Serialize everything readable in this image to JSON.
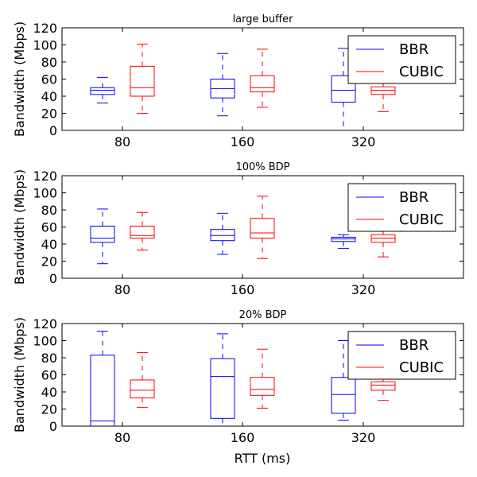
{
  "xlabel": "RTT (ms)",
  "colors": {
    "BBR": "#0000ff",
    "CUBIC": "#ff0000"
  },
  "chart_data": [
    {
      "type": "box",
      "title": "large buffer",
      "ylabel": "Bandwidth (Mbps)",
      "categories": [
        "80",
        "160",
        "320"
      ],
      "ylim": [
        0,
        120
      ],
      "yticks": [
        0,
        20,
        40,
        60,
        80,
        100,
        120
      ],
      "legend": "top-right",
      "series": [
        {
          "name": "BBR",
          "boxes": [
            {
              "min": 32,
              "q1": 42,
              "median": 47,
              "q3": 50,
              "max": 62
            },
            {
              "min": 17,
              "q1": 38,
              "median": 49,
              "q3": 60,
              "max": 90
            },
            {
              "min": 0,
              "q1": 33,
              "median": 47,
              "q3": 64,
              "max": 96
            }
          ]
        },
        {
          "name": "CUBIC",
          "boxes": [
            {
              "min": 20,
              "q1": 40,
              "median": 50,
              "q3": 75,
              "max": 101
            },
            {
              "min": 27,
              "q1": 45,
              "median": 50,
              "q3": 64,
              "max": 95
            },
            {
              "min": 22,
              "q1": 42,
              "median": 47,
              "q3": 51,
              "max": 60
            }
          ]
        }
      ]
    },
    {
      "type": "box",
      "title": "100% BDP",
      "ylabel": "Bandwidth (Mbps)",
      "categories": [
        "80",
        "160",
        "320"
      ],
      "ylim": [
        0,
        120
      ],
      "yticks": [
        0,
        20,
        40,
        60,
        80,
        100,
        120
      ],
      "legend": "top-right",
      "series": [
        {
          "name": "BBR",
          "boxes": [
            {
              "min": 17,
              "q1": 42,
              "median": 47,
              "q3": 61,
              "max": 81
            },
            {
              "min": 28,
              "q1": 44,
              "median": 50,
              "q3": 57,
              "max": 76
            },
            {
              "min": 35,
              "q1": 43,
              "median": 46,
              "q3": 48,
              "max": 51
            }
          ]
        },
        {
          "name": "CUBIC",
          "boxes": [
            {
              "min": 33,
              "q1": 47,
              "median": 50,
              "q3": 61,
              "max": 77
            },
            {
              "min": 23,
              "q1": 47,
              "median": 53,
              "q3": 70,
              "max": 96
            },
            {
              "min": 25,
              "q1": 42,
              "median": 47,
              "q3": 51,
              "max": 56
            }
          ]
        }
      ]
    },
    {
      "type": "box",
      "title": "20% BDP",
      "ylabel": "Bandwidth (Mbps)",
      "categories": [
        "80",
        "160",
        "320"
      ],
      "ylim": [
        0,
        120
      ],
      "yticks": [
        0,
        20,
        40,
        60,
        80,
        100,
        120
      ],
      "legend": "top-right",
      "series": [
        {
          "name": "BBR",
          "boxes": [
            {
              "min": 0,
              "q1": 0,
              "median": 6,
              "q3": 83,
              "max": 111
            },
            {
              "min": 0,
              "q1": 9,
              "median": 58,
              "q3": 79,
              "max": 108
            },
            {
              "min": 7,
              "q1": 15,
              "median": 37,
              "q3": 57,
              "max": 100
            }
          ]
        },
        {
          "name": "CUBIC",
          "boxes": [
            {
              "min": 22,
              "q1": 33,
              "median": 42,
              "q3": 54,
              "max": 86
            },
            {
              "min": 21,
              "q1": 36,
              "median": 43,
              "q3": 57,
              "max": 90
            },
            {
              "min": 30,
              "q1": 42,
              "median": 48,
              "q3": 52,
              "max": 58
            }
          ]
        }
      ]
    }
  ]
}
